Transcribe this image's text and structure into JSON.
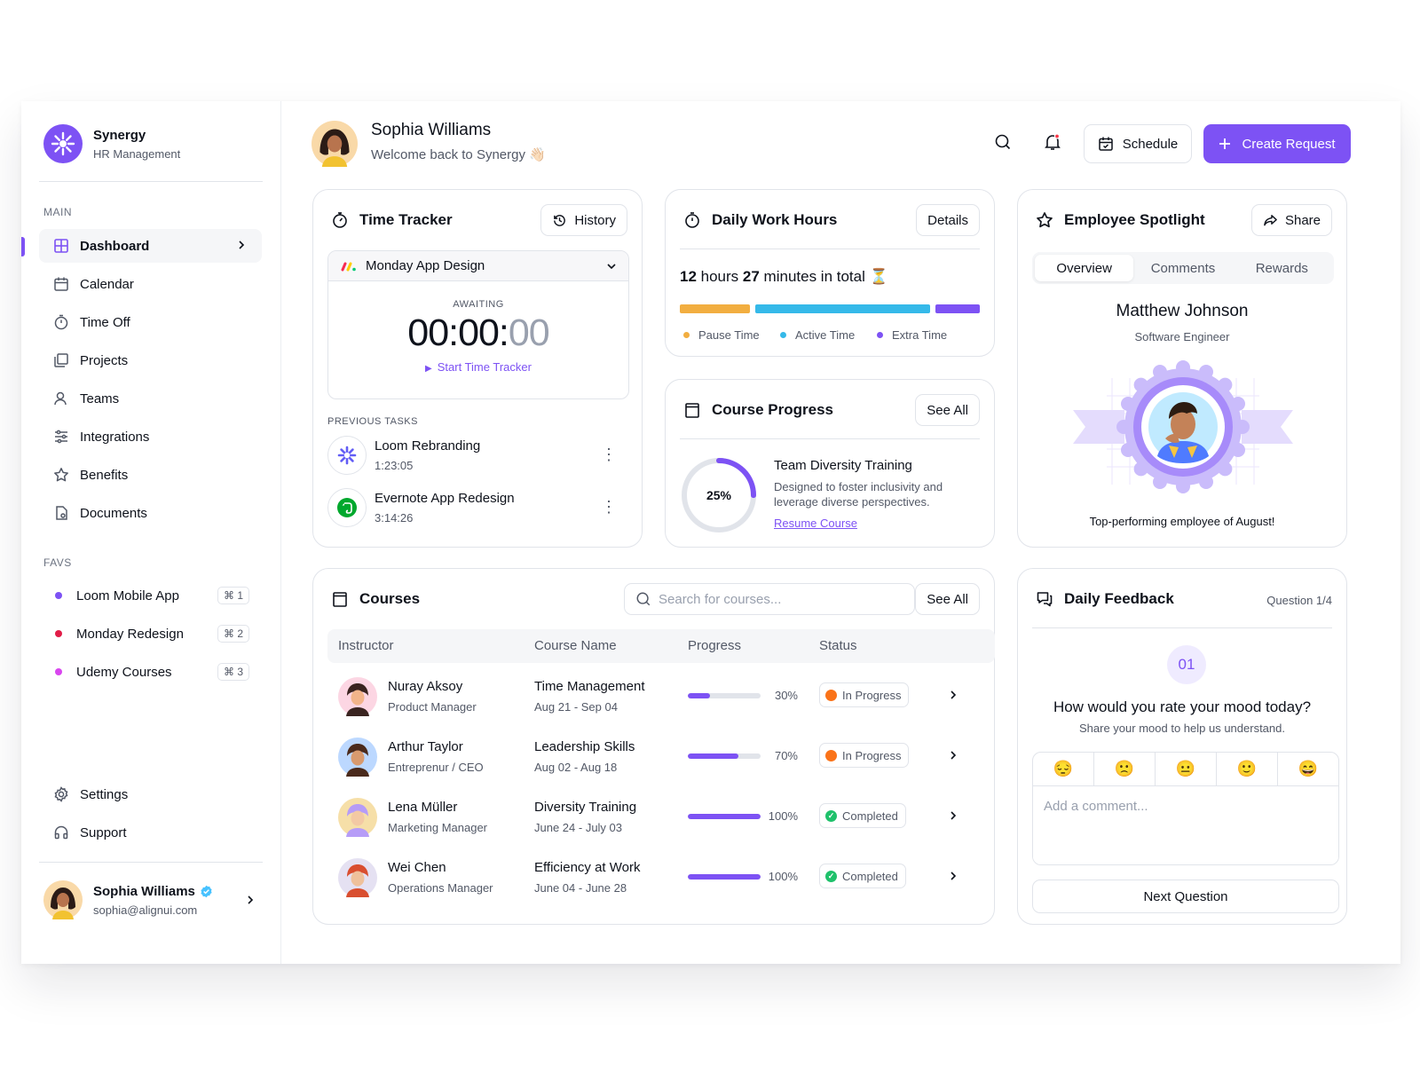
{
  "brand": {
    "name": "Synergy",
    "subtitle": "HR Management"
  },
  "sidebar": {
    "main_label": "MAIN",
    "items": [
      {
        "label": "Dashboard",
        "icon": "grid-icon",
        "active": true
      },
      {
        "label": "Calendar",
        "icon": "calendar-icon"
      },
      {
        "label": "Time Off",
        "icon": "timer-icon"
      },
      {
        "label": "Projects",
        "icon": "stack-icon"
      },
      {
        "label": "Teams",
        "icon": "users-icon"
      },
      {
        "label": "Integrations",
        "icon": "sliders-icon"
      },
      {
        "label": "Benefits",
        "icon": "star-icon"
      },
      {
        "label": "Documents",
        "icon": "document-icon"
      }
    ],
    "favs_label": "FAVS",
    "favs": [
      {
        "label": "Loom Mobile App",
        "shortcut": "⌘ 1",
        "color": "#7d52f4"
      },
      {
        "label": "Monday Redesign",
        "shortcut": "⌘ 2",
        "color": "#e11d48"
      },
      {
        "label": "Udemy Courses",
        "shortcut": "⌘ 3",
        "color": "#d946ef"
      }
    ],
    "bottom": [
      {
        "label": "Settings",
        "icon": "gear-icon"
      },
      {
        "label": "Support",
        "icon": "headphones-icon"
      }
    ],
    "user": {
      "name": "Sophia Williams",
      "email": "sophia@alignui.com"
    }
  },
  "header": {
    "name": "Sophia Williams",
    "welcome": "Welcome back to Synergy 👋🏻",
    "schedule_label": "Schedule",
    "create_label": "Create Request"
  },
  "time_tracker": {
    "title": "Time Tracker",
    "history_label": "History",
    "project": "Monday App Design",
    "state": "AWAITING",
    "time_main": "00:00:",
    "time_dim": "00",
    "start_label": "Start Time Tracker",
    "prev_label": "PREVIOUS TASKS",
    "tasks": [
      {
        "name": "Loom Rebranding",
        "time": "1:23:05"
      },
      {
        "name": "Evernote App Redesign",
        "time": "3:14:26"
      }
    ]
  },
  "work_hours": {
    "title": "Daily Work Hours",
    "details_label": "Details",
    "hours": "12",
    "hours_text": " hours ",
    "minutes": "27",
    "minutes_text": " minutes in total ⏳",
    "segments": [
      {
        "label": "Pause Time",
        "color": "#f2ae40",
        "share": 0.22
      },
      {
        "label": "Active Time",
        "color": "#35b9e9",
        "share": 0.55
      },
      {
        "label": "Extra Time",
        "color": "#7d52f4",
        "share": 0.14
      }
    ]
  },
  "course_progress": {
    "title": "Course Progress",
    "see_all": "See All",
    "percent": 25,
    "percent_label": "25%",
    "course": "Team Diversity Training",
    "description": "Designed to foster inclusivity and leverage diverse perspectives.",
    "link": "Resume Course"
  },
  "spotlight": {
    "title": "Employee Spotlight",
    "share_label": "Share",
    "tabs": [
      "Overview",
      "Comments",
      "Rewards"
    ],
    "name": "Matthew Johnson",
    "role": "Software Engineer",
    "caption": "Top-performing employee of August!"
  },
  "courses": {
    "title": "Courses",
    "search_placeholder": "Search for courses...",
    "see_all": "See All",
    "columns": [
      "Instructor",
      "Course Name",
      "Progress",
      "Status"
    ],
    "rows": [
      {
        "name": "Nuray Aksoy",
        "role": "Product Manager",
        "course": "Time Management",
        "dates": "Aug 21 - Sep 04",
        "progress": 30,
        "progress_label": "30%",
        "status": "In Progress"
      },
      {
        "name": "Arthur Taylor",
        "role": "Entreprenur / CEO",
        "course": "Leadership Skills",
        "dates": "Aug 02 - Aug 18",
        "progress": 70,
        "progress_label": "70%",
        "status": "In Progress"
      },
      {
        "name": "Lena Müller",
        "role": "Marketing Manager",
        "course": "Diversity Training",
        "dates": "June 24 - July 03",
        "progress": 100,
        "progress_label": "100%",
        "status": "Completed"
      },
      {
        "name": "Wei Chen",
        "role": "Operations Manager",
        "course": "Efficiency at Work",
        "dates": "June 04 - June 28",
        "progress": 100,
        "progress_label": "100%",
        "status": "Completed"
      }
    ]
  },
  "feedback": {
    "title": "Daily Feedback",
    "question_count": "Question 1/4",
    "number": "01",
    "question": "How would you rate your mood today?",
    "sub": "Share your mood to help us understand.",
    "moods": [
      "😔",
      "🙁",
      "😐",
      "🙂",
      "😄"
    ],
    "comment_placeholder": "Add a comment...",
    "next_label": "Next Question"
  }
}
